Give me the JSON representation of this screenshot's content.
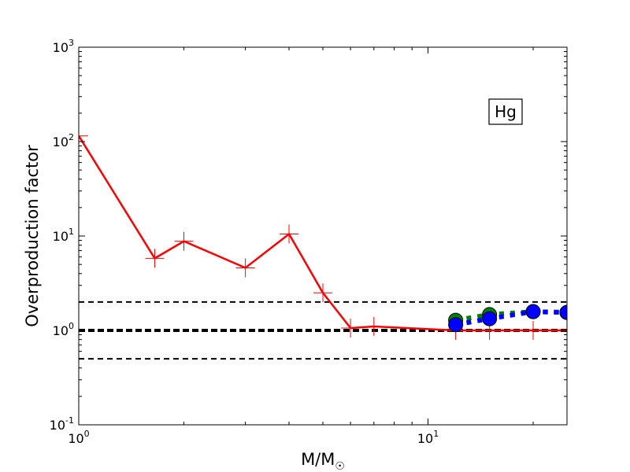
{
  "chart_data": {
    "type": "line",
    "xlabel": "M/M",
    "xlabel_sub": "☉",
    "ylabel": "Overproduction factor",
    "xscale": "log",
    "yscale": "log",
    "xlim": [
      1,
      25
    ],
    "ylim": [
      0.1,
      1000
    ],
    "x_ticks": [
      {
        "value": 1,
        "base": "10",
        "exp": "0"
      },
      {
        "value": 10,
        "base": "10",
        "exp": "1"
      }
    ],
    "y_ticks": [
      {
        "value": 0.1,
        "base": "10",
        "exp": "-1"
      },
      {
        "value": 1,
        "base": "10",
        "exp": "0"
      },
      {
        "value": 10,
        "base": "10",
        "exp": "1"
      },
      {
        "value": 100,
        "base": "10",
        "exp": "2"
      },
      {
        "value": 1000,
        "base": "10",
        "exp": "3"
      }
    ],
    "reference_lines": [
      {
        "y": 2.0,
        "style": "dashed",
        "color": "#000000",
        "width": 2
      },
      {
        "y": 1.0,
        "style": "dashed",
        "color": "#000000",
        "width": 4
      },
      {
        "y": 0.5,
        "style": "dashed",
        "color": "#000000",
        "width": 2
      }
    ],
    "annotation": {
      "text": "Hg",
      "position": "upper-right"
    },
    "series": [
      {
        "color": "#ff0000",
        "line": "solid",
        "marker": "plus",
        "x": [
          1.0,
          1.65,
          2.0,
          3.0,
          4.0,
          5.0,
          6.0,
          7.0,
          12.0,
          15.0,
          20.0,
          25.0
        ],
        "y": [
          115,
          5.8,
          8.8,
          4.6,
          10.5,
          2.5,
          1.06,
          1.1,
          1.0,
          1.0,
          1.0,
          1.0
        ]
      },
      {
        "color": "#008000",
        "line": "dotted",
        "marker": "circle",
        "x": [
          12.0,
          15.0,
          20.0,
          25.0
        ],
        "y": [
          1.28,
          1.47,
          1.58,
          1.55
        ]
      },
      {
        "color": "#0000ff",
        "line": "dotted",
        "marker": "circle",
        "x": [
          12.0,
          15.0,
          20.0,
          25.0
        ],
        "y": [
          1.15,
          1.33,
          1.58,
          1.55
        ]
      }
    ]
  }
}
